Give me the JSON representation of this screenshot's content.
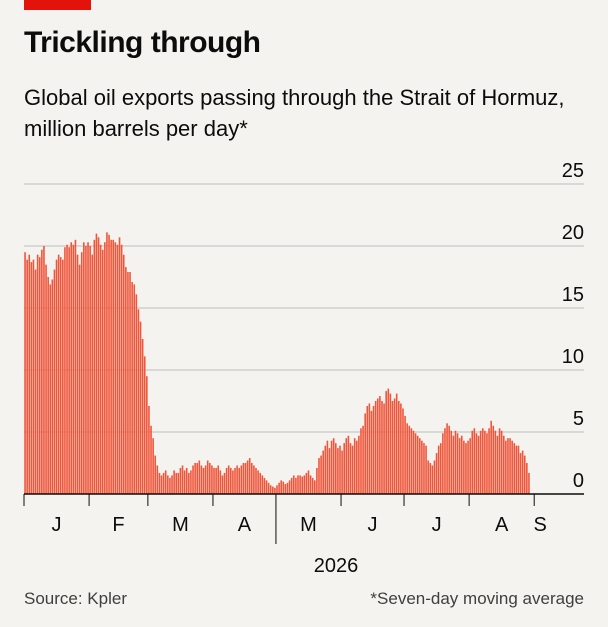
{
  "header": {
    "title": "Trickling through",
    "subtitle": "Global oil exports passing through the Strait of Hormuz, million barrels per day*"
  },
  "footer": {
    "source": "Source: Kpler",
    "note": "*Seven-day moving average"
  },
  "colors": {
    "bar": "#F0553A",
    "accent": "#E3120B",
    "grid": "#BDBDBD",
    "background": "#F4F3EF"
  },
  "chart_data": {
    "type": "bar",
    "title": "Trickling through",
    "subtitle": "Global oil exports passing through the Strait of Hormuz, million barrels per day*",
    "xlabel": "2026",
    "ylabel": "",
    "ylim": [
      0,
      25
    ],
    "yticks": [
      "25",
      "20",
      "15",
      "10",
      "5",
      "0"
    ],
    "ytick_values": [
      25,
      20,
      15,
      10,
      5,
      0
    ],
    "y_axis_position": "right",
    "grid": true,
    "legend": "none",
    "x_ticks": [
      {
        "label": "J",
        "day": 0
      },
      {
        "label": "F",
        "day": 31
      },
      {
        "label": "M",
        "day": 59
      },
      {
        "label": "A",
        "day": 90
      },
      {
        "label": "M",
        "day": 120
      },
      {
        "label": "J",
        "day": 151
      },
      {
        "label": "J",
        "day": 181
      },
      {
        "label": "A",
        "day": 212
      },
      {
        "label": "S",
        "day": 243
      }
    ],
    "x_axis_year": "2026",
    "x_start": "2026-01-01",
    "x_unit": "days",
    "series": [
      {
        "values": [
          19.5,
          18.9,
          19.3,
          18.7,
          18.9,
          18.1,
          19.3,
          19.1,
          19.7,
          20.0,
          18.5,
          17.5,
          16.9,
          17.3,
          18.1,
          18.9,
          19.3,
          19.1,
          18.9,
          19.9,
          20.1,
          19.9,
          20.3,
          20.1,
          20.5,
          19.3,
          18.5,
          19.5,
          20.3,
          20.0,
          20.3,
          20.0,
          19.3,
          20.5,
          21.0,
          20.7,
          20.1,
          19.7,
          20.3,
          21.1,
          20.9,
          20.5,
          20.5,
          20.3,
          20.1,
          20.7,
          20.1,
          19.3,
          18.3,
          17.9,
          17.9,
          17.1,
          16.9,
          16.1,
          14.9,
          13.9,
          12.5,
          11.1,
          9.5,
          7.1,
          5.5,
          4.5,
          3.1,
          2.3,
          1.7,
          1.5,
          1.7,
          1.9,
          1.5,
          1.3,
          1.5,
          1.9,
          1.7,
          1.7,
          2.1,
          2.3,
          1.9,
          2.1,
          1.7,
          1.9,
          2.3,
          2.5,
          2.5,
          2.7,
          2.3,
          2.1,
          2.3,
          2.7,
          2.5,
          2.3,
          2.1,
          2.1,
          2.3,
          1.9,
          1.5,
          1.7,
          2.1,
          2.3,
          2.1,
          1.9,
          2.1,
          2.3,
          2.1,
          2.3,
          2.5,
          2.5,
          2.7,
          2.9,
          2.5,
          2.3,
          2.1,
          1.9,
          1.7,
          1.5,
          1.3,
          1.1,
          0.9,
          0.7,
          0.6,
          0.5,
          0.7,
          0.9,
          1.1,
          1.0,
          0.8,
          0.9,
          1.1,
          1.3,
          1.5,
          1.3,
          1.5,
          1.5,
          1.4,
          1.5,
          1.7,
          1.9,
          1.5,
          1.3,
          1.1,
          2.1,
          2.9,
          3.1,
          3.5,
          3.9,
          4.3,
          3.7,
          4.3,
          4.5,
          4.1,
          3.7,
          3.9,
          3.5,
          4.1,
          4.5,
          4.7,
          4.1,
          3.9,
          4.5,
          4.3,
          4.7,
          5.3,
          5.5,
          6.5,
          7.1,
          7.3,
          6.7,
          7.1,
          7.5,
          7.7,
          7.9,
          7.5,
          7.3,
          8.3,
          8.5,
          8.1,
          7.5,
          7.7,
          8.1,
          7.5,
          7.3,
          6.9,
          6.3,
          5.7,
          5.5,
          5.3,
          5.1,
          4.9,
          4.7,
          4.5,
          4.3,
          4.1,
          3.9,
          2.7,
          2.5,
          2.3,
          2.7,
          3.3,
          3.9,
          4.1,
          4.9,
          5.3,
          5.7,
          5.5,
          5.1,
          4.7,
          5.1,
          4.9,
          4.5,
          4.7,
          4.3,
          4.1,
          4.3,
          4.5,
          5.1,
          5.3,
          4.9,
          4.7,
          5.1,
          5.3,
          5.1,
          4.9,
          5.3,
          5.9,
          5.5,
          5.1,
          4.7,
          5.3,
          5.1,
          4.7,
          4.3,
          4.5,
          4.5,
          4.3,
          4.1,
          3.9,
          3.9,
          3.3,
          3.5,
          3.1,
          2.5,
          1.7
        ]
      }
    ]
  }
}
